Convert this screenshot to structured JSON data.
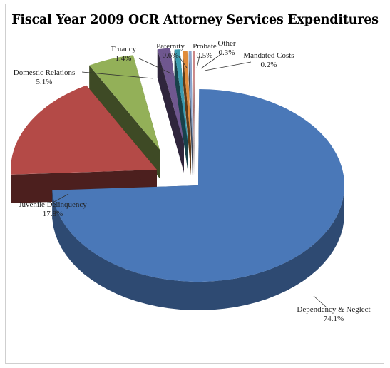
{
  "chart_data": {
    "type": "pie",
    "title": "Fiscal Year 2009 OCR Attorney Services Expenditures",
    "style": "3d-exploded",
    "slices": [
      {
        "label": "Dependency & Neglect",
        "value": 74.1,
        "value_label": "74.1%",
        "color": "#4a78b8"
      },
      {
        "label": "Juvenile Delinquency",
        "value": 17.8,
        "value_label": "17.8%",
        "color": "#b44a47"
      },
      {
        "label": "Domestic Relations",
        "value": 5.1,
        "value_label": "5.1%",
        "color": "#93b058"
      },
      {
        "label": "Truancy",
        "value": 1.4,
        "value_label": "1.4%",
        "color": "#6f578f"
      },
      {
        "label": "Paternity",
        "value": 0.6,
        "value_label": "0.6%",
        "color": "#3a9bb0"
      },
      {
        "label": "Probate",
        "value": 0.5,
        "value_label": "0.5%",
        "color": "#e08b3a"
      },
      {
        "label": "Other",
        "value": 0.3,
        "value_label": "0.3%",
        "color": "#8aa4cc"
      },
      {
        "label": "Mandated Costs",
        "value": 0.2,
        "value_label": "0.2%",
        "color": "#cc8888"
      }
    ]
  }
}
